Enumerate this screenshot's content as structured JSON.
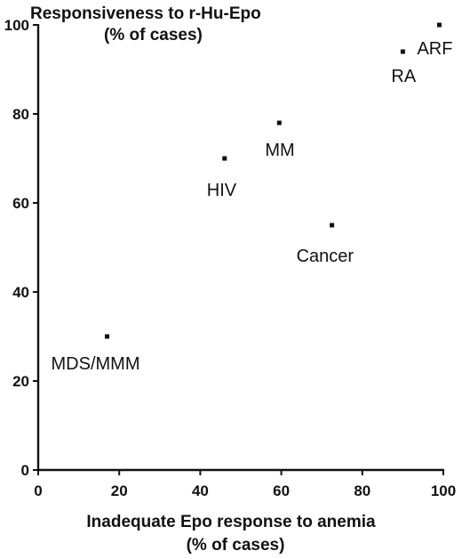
{
  "chart_data": {
    "type": "scatter",
    "ylabel_line1": "Responsiveness to r-Hu-Epo",
    "ylabel_line2": "(% of cases)",
    "xlabel_line1": "Inadequate Epo response to anemia",
    "xlabel_line2": "(% of cases)",
    "xlim": [
      0,
      100
    ],
    "ylim": [
      0,
      100
    ],
    "x_ticks": [
      0,
      20,
      40,
      60,
      80,
      100
    ],
    "y_ticks": [
      0,
      20,
      40,
      60,
      80,
      100
    ],
    "grid": false,
    "points": [
      {
        "label": "MDS/MMM",
        "x": 17,
        "y": 30
      },
      {
        "label": "HIV",
        "x": 46,
        "y": 70
      },
      {
        "label": "MM",
        "x": 59.5,
        "y": 78
      },
      {
        "label": "Cancer",
        "x": 72.5,
        "y": 55
      },
      {
        "label": "RA",
        "x": 90,
        "y": 94
      },
      {
        "label": "ARF",
        "x": 99,
        "y": 100
      }
    ]
  }
}
